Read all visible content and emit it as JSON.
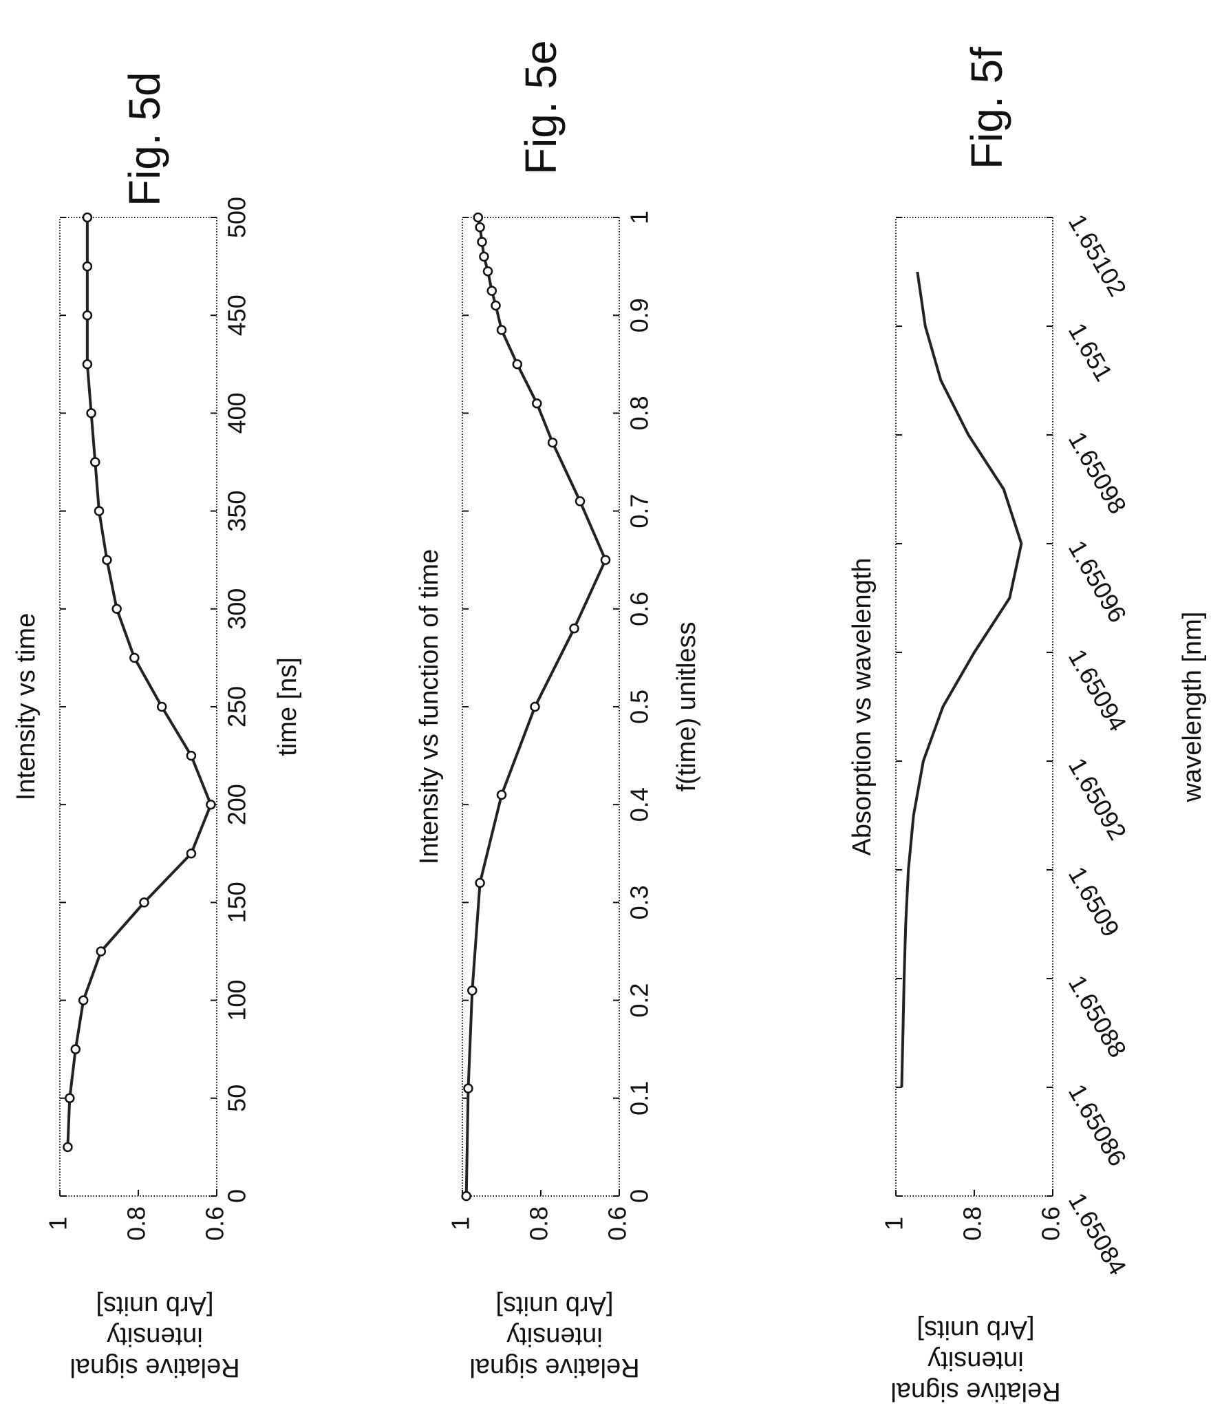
{
  "chart_data": [
    {
      "type": "line",
      "figure_label": "Fig. 5d",
      "title": "Intensity vs time",
      "xlabel": "time [ns]",
      "ylabel_lines": [
        "Relative signal",
        "intensity",
        "[Arb units]"
      ],
      "xlim": [
        0,
        500
      ],
      "ylim": [
        0.6,
        1
      ],
      "xticks": [
        "0",
        "50",
        "100",
        "150",
        "200",
        "250",
        "300",
        "350",
        "400",
        "450",
        "500"
      ],
      "yticks": [
        "0.6",
        "0.8",
        "1"
      ],
      "markers": true,
      "x": [
        25,
        50,
        75,
        100,
        125,
        150,
        175,
        200,
        225,
        250,
        275,
        300,
        325,
        350,
        375,
        400,
        425,
        450,
        475,
        500
      ],
      "y": [
        0.98,
        0.975,
        0.96,
        0.94,
        0.895,
        0.785,
        0.665,
        0.615,
        0.665,
        0.74,
        0.81,
        0.855,
        0.88,
        0.9,
        0.91,
        0.92,
        0.93,
        0.93,
        0.93,
        0.93
      ]
    },
    {
      "type": "line",
      "figure_label": "Fig. 5e",
      "title": "Intensity vs function of time",
      "xlabel": "f(time) unitless",
      "ylabel_lines": [
        "Relative signal",
        "intensity",
        "[Arb units]"
      ],
      "xlim": [
        0,
        1
      ],
      "ylim": [
        0.6,
        1
      ],
      "xticks": [
        "0",
        "0.1",
        "0.2",
        "0.3",
        "0.4",
        "0.5",
        "0.6",
        "0.7",
        "0.8",
        "0.9",
        "1"
      ],
      "yticks": [
        "0.6",
        "0.8",
        "1"
      ],
      "markers": true,
      "x": [
        0.0,
        0.11,
        0.21,
        0.32,
        0.41,
        0.5,
        0.58,
        0.65,
        0.71,
        0.77,
        0.81,
        0.85,
        0.885,
        0.91,
        0.925,
        0.945,
        0.96,
        0.975,
        0.99,
        1.0
      ],
      "y": [
        0.99,
        0.985,
        0.975,
        0.955,
        0.9,
        0.815,
        0.715,
        0.635,
        0.7,
        0.77,
        0.81,
        0.86,
        0.9,
        0.915,
        0.925,
        0.935,
        0.945,
        0.95,
        0.955,
        0.96
      ]
    },
    {
      "type": "line",
      "figure_label": "Fig. 5f",
      "title": "Absorption vs wavelength",
      "xlabel": "wavelength [nm]",
      "ylabel_lines": [
        "Relative signal",
        "intensity",
        "[Arb units]"
      ],
      "xlim": [
        1.65084,
        1.65102
      ],
      "ylim": [
        0.6,
        1
      ],
      "xticks": [
        "1.65084",
        "1.65086",
        "1.65088",
        "1.6509",
        "1.65092",
        "1.65094",
        "1.65096",
        "1.65098",
        "1.651",
        "1.65102"
      ],
      "yticks": [
        "0.6",
        "0.8",
        "1"
      ],
      "markers": false,
      "x": [
        1.65086,
        1.65087,
        1.65088,
        1.65089,
        1.6509,
        1.65091,
        1.65092,
        1.65093,
        1.65094,
        1.65095,
        1.65096,
        1.65097,
        1.65098,
        1.65099,
        1.651,
        1.65101
      ],
      "y": [
        0.985,
        0.982,
        0.979,
        0.975,
        0.968,
        0.955,
        0.93,
        0.88,
        0.8,
        0.71,
        0.68,
        0.725,
        0.815,
        0.885,
        0.925,
        0.945
      ]
    }
  ]
}
